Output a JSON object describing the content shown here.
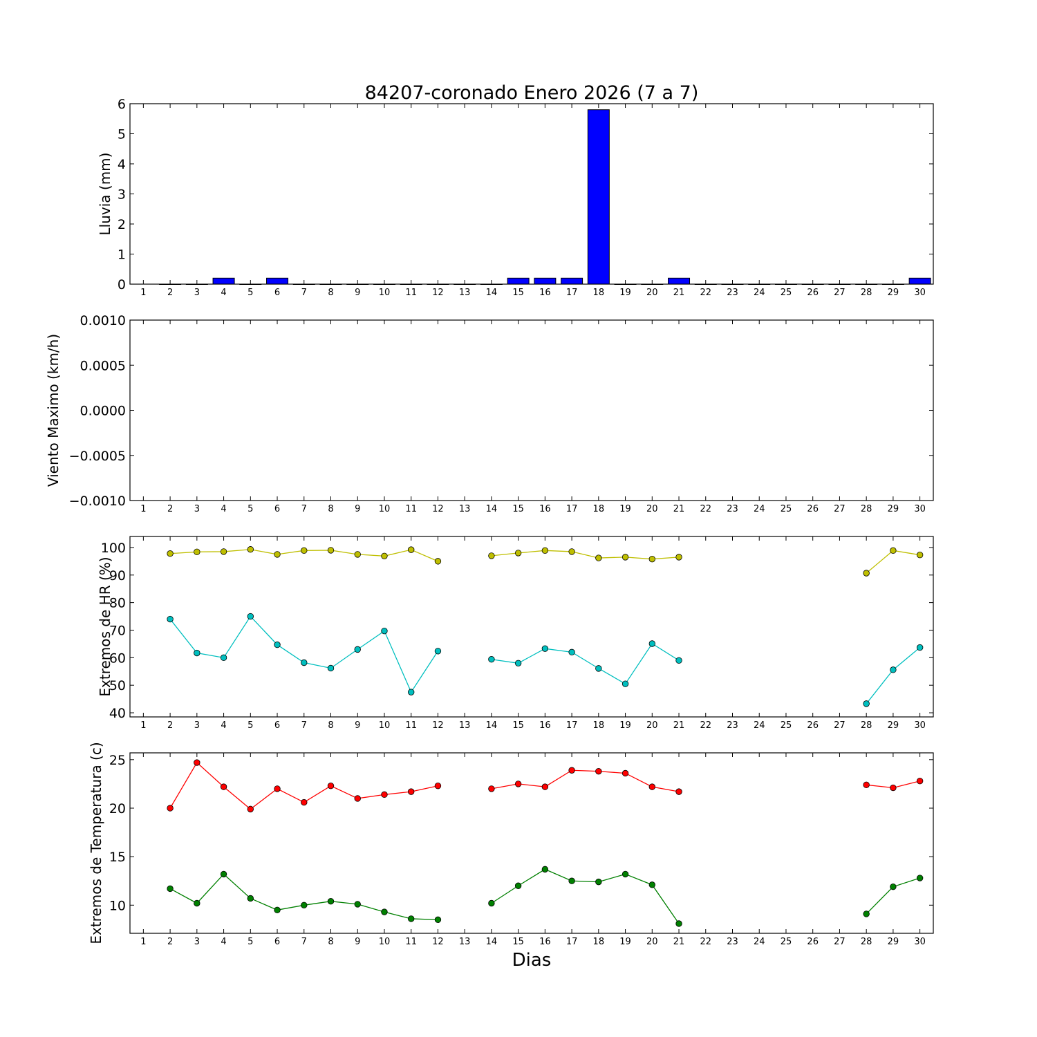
{
  "figure": {
    "title": "84207-coronado Enero 2026  (7 a 7)",
    "xlabel": "Dias"
  },
  "chart_data": [
    {
      "type": "bar",
      "ylabel": "Lluvia (mm)",
      "xlim": [
        0.5,
        30.5
      ],
      "ylim": [
        0,
        6
      ],
      "yticks": [
        "0",
        "1",
        "2",
        "3",
        "4",
        "5",
        "6"
      ],
      "xticks": [
        "1",
        "2",
        "3",
        "4",
        "5",
        "6",
        "7",
        "8",
        "9",
        "10",
        "11",
        "12",
        "13",
        "14",
        "15",
        "16",
        "17",
        "18",
        "19",
        "20",
        "21",
        "22",
        "23",
        "24",
        "25",
        "26",
        "27",
        "28",
        "29",
        "30"
      ],
      "bar_color": "#0000ff",
      "categories": [
        2,
        3,
        4,
        5,
        6,
        7,
        8,
        9,
        10,
        11,
        12,
        13,
        14,
        15,
        16,
        17,
        18,
        19,
        20,
        21,
        22,
        23,
        24,
        25,
        26,
        27,
        28,
        29,
        30
      ],
      "values": [
        0,
        0,
        0.2,
        0,
        0.2,
        0,
        0,
        0,
        0,
        0,
        0,
        0,
        0,
        0.2,
        0.2,
        0.2,
        5.8,
        0,
        0,
        0.2,
        0,
        0,
        0,
        0,
        0,
        0,
        0,
        0,
        0.2
      ]
    },
    {
      "type": "line",
      "ylabel": "Viento Maximo (km/h)",
      "xlim": [
        0.5,
        30.5
      ],
      "ylim": [
        -0.001,
        0.001
      ],
      "yticks": [
        "−0.0010",
        "−0.0005",
        "0.0000",
        "0.0005",
        "0.0010"
      ],
      "xticks": [
        "1",
        "2",
        "3",
        "4",
        "5",
        "6",
        "7",
        "8",
        "9",
        "10",
        "11",
        "12",
        "13",
        "14",
        "15",
        "16",
        "17",
        "18",
        "19",
        "20",
        "21",
        "22",
        "23",
        "24",
        "25",
        "26",
        "27",
        "28",
        "29",
        "30"
      ],
      "series": []
    },
    {
      "type": "line",
      "ylabel": "Extremos de HR (%)",
      "xlim": [
        0.5,
        30.5
      ],
      "ylim": [
        38.5,
        104
      ],
      "yticks": [
        "40",
        "50",
        "60",
        "70",
        "80",
        "90",
        "100"
      ],
      "xticks": [
        "1",
        "2",
        "3",
        "4",
        "5",
        "6",
        "7",
        "8",
        "9",
        "10",
        "11",
        "12",
        "13",
        "14",
        "15",
        "16",
        "17",
        "18",
        "19",
        "20",
        "21",
        "22",
        "23",
        "24",
        "25",
        "26",
        "27",
        "28",
        "29",
        "30"
      ],
      "series": [
        {
          "color": "#bfbf00",
          "x": [
            2,
            3,
            4,
            5,
            6,
            7,
            8,
            9,
            10,
            11,
            12,
            13,
            14,
            15,
            16,
            17,
            18,
            19,
            20,
            21,
            22,
            23,
            24,
            25,
            26,
            27,
            28,
            29,
            30
          ],
          "values": [
            97.8,
            98.4,
            98.5,
            99.3,
            97.5,
            98.9,
            99.0,
            97.5,
            96.9,
            99.2,
            95.0,
            null,
            97.0,
            98.0,
            98.9,
            98.5,
            96.2,
            96.5,
            95.8,
            96.5,
            null,
            null,
            null,
            null,
            null,
            null,
            90.7,
            98.9,
            97.3
          ]
        },
        {
          "color": "#00bfbf",
          "x": [
            2,
            3,
            4,
            5,
            6,
            7,
            8,
            9,
            10,
            11,
            12,
            13,
            14,
            15,
            16,
            17,
            18,
            19,
            20,
            21,
            22,
            23,
            24,
            25,
            26,
            27,
            28,
            29,
            30
          ],
          "values": [
            74.0,
            61.7,
            60.0,
            75.0,
            64.7,
            58.2,
            56.2,
            63.0,
            69.7,
            47.5,
            62.4,
            null,
            59.4,
            58.0,
            63.3,
            62.0,
            56.1,
            50.5,
            65.1,
            59.0,
            null,
            null,
            null,
            null,
            null,
            null,
            43.3,
            55.6,
            63.7
          ]
        }
      ]
    },
    {
      "type": "line",
      "ylabel": "Extremos de Temperatura (c)",
      "xlim": [
        0.5,
        30.5
      ],
      "ylim": [
        7.1,
        25.7
      ],
      "yticks": [
        "10",
        "15",
        "20",
        "25"
      ],
      "xticks": [
        "1",
        "2",
        "3",
        "4",
        "5",
        "6",
        "7",
        "8",
        "9",
        "10",
        "11",
        "12",
        "13",
        "14",
        "15",
        "16",
        "17",
        "18",
        "19",
        "20",
        "21",
        "22",
        "23",
        "24",
        "25",
        "26",
        "27",
        "28",
        "29",
        "30"
      ],
      "series": [
        {
          "color": "#ff0000",
          "x": [
            2,
            3,
            4,
            5,
            6,
            7,
            8,
            9,
            10,
            11,
            12,
            13,
            14,
            15,
            16,
            17,
            18,
            19,
            20,
            21,
            22,
            23,
            24,
            25,
            26,
            27,
            28,
            29,
            30
          ],
          "values": [
            20.0,
            24.7,
            22.2,
            19.9,
            22.0,
            20.6,
            22.3,
            21.0,
            21.4,
            21.7,
            22.3,
            null,
            22.0,
            22.5,
            22.2,
            23.9,
            23.8,
            23.6,
            22.2,
            21.7,
            null,
            null,
            null,
            null,
            null,
            null,
            22.4,
            22.1,
            22.8
          ]
        },
        {
          "color": "#008000",
          "x": [
            2,
            3,
            4,
            5,
            6,
            7,
            8,
            9,
            10,
            11,
            12,
            13,
            14,
            15,
            16,
            17,
            18,
            19,
            20,
            21,
            22,
            23,
            24,
            25,
            26,
            27,
            28,
            29,
            30
          ],
          "values": [
            11.7,
            10.2,
            13.2,
            10.7,
            9.5,
            10.0,
            10.4,
            10.1,
            9.3,
            8.6,
            8.5,
            null,
            10.2,
            12.0,
            13.7,
            12.5,
            12.4,
            13.2,
            12.1,
            8.1,
            null,
            null,
            null,
            null,
            null,
            null,
            9.1,
            11.9,
            12.8
          ]
        }
      ]
    }
  ]
}
